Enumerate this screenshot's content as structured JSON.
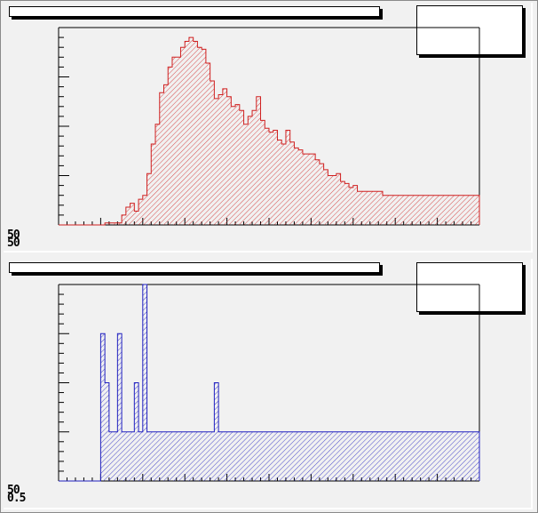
{
  "canvas": {
    "background": "#f1f1f1"
  },
  "pads": [
    {
      "title": "",
      "stats": "",
      "axis_stub_1": "50",
      "axis_stub_2": "50"
    },
    {
      "title": "",
      "stats": "",
      "axis_stub_1": "50",
      "axis_stub_2": "0.5"
    }
  ],
  "chart_data": [
    {
      "type": "bar",
      "style": "histogram-step",
      "line_color": "#d02020",
      "fill_pattern": "hatched",
      "xlim": [
        0,
        100
      ],
      "ylim": [
        0,
        100
      ],
      "title": "",
      "xlabel": "",
      "ylabel": "",
      "grid": false,
      "values": [
        0,
        0,
        0,
        0,
        0,
        0,
        0,
        0,
        0,
        0,
        0,
        1,
        1,
        1,
        1,
        5,
        9,
        11,
        7,
        13,
        15,
        26,
        41,
        51,
        67,
        71,
        80,
        85,
        85,
        90,
        93,
        95,
        93,
        90,
        89,
        82,
        73,
        64,
        66,
        69,
        65,
        60,
        61,
        58,
        51,
        55,
        58,
        65,
        53,
        49,
        47,
        48,
        43,
        41,
        48,
        42,
        39,
        38,
        36,
        36,
        36,
        33,
        31,
        28,
        25,
        25,
        26,
        22,
        21,
        19,
        20,
        17,
        17,
        17,
        17,
        17,
        17,
        15,
        15,
        15,
        15,
        15,
        15,
        15,
        15,
        15,
        15,
        15,
        15,
        15,
        15,
        15,
        15,
        15,
        15,
        15,
        15,
        15,
        15,
        15
      ]
    },
    {
      "type": "bar",
      "style": "histogram-step",
      "line_color": "#2020c0",
      "fill_pattern": "hatched",
      "xlim": [
        0,
        100
      ],
      "ylim": [
        0,
        8
      ],
      "title": "",
      "xlabel": "",
      "ylabel": "",
      "grid": false,
      "values": [
        0,
        0,
        0,
        0,
        0,
        0,
        0,
        0,
        0,
        0,
        6,
        4,
        2,
        2,
        6,
        2,
        2,
        2,
        4,
        2,
        8,
        2,
        2,
        2,
        2,
        2,
        2,
        2,
        2,
        2,
        2,
        2,
        2,
        2,
        2,
        2,
        2,
        4,
        2,
        2,
        2,
        2,
        2,
        2,
        2,
        2,
        2,
        2,
        2,
        2,
        2,
        2,
        2,
        2,
        2,
        2,
        2,
        2,
        2,
        2,
        2,
        2,
        2,
        2,
        2,
        2,
        2,
        2,
        2,
        2,
        2,
        2,
        2,
        2,
        2,
        2,
        2,
        2,
        2,
        2,
        2,
        2,
        2,
        2,
        2,
        2,
        2,
        2,
        2,
        2,
        2,
        2,
        2,
        2,
        2,
        2,
        2,
        2,
        2,
        2
      ]
    }
  ]
}
